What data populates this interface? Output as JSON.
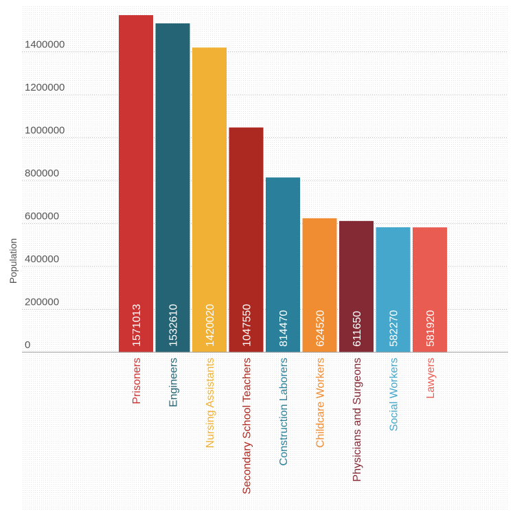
{
  "chart_data": {
    "type": "bar",
    "title": "",
    "xlabel": "",
    "ylabel": "Population",
    "ylim": [
      0,
      1600000
    ],
    "yticks": [
      0,
      200000,
      400000,
      600000,
      800000,
      1000000,
      1200000,
      1400000
    ],
    "ytick_labels": [
      "0",
      "200000",
      "400000",
      "600000",
      "800000",
      "1000000",
      "1200000",
      "1400000"
    ],
    "categories": [
      "Prisoners",
      "Engineers",
      "Nursing Assistants",
      "Secondary School Teachers",
      "Construction Laborers",
      "Childcare Workers",
      "Physicians and Surgeons",
      "Social Workers",
      "Lawyers"
    ],
    "values": [
      1571013,
      1532610,
      1420020,
      1047550,
      814470,
      624520,
      611650,
      582270,
      581920
    ],
    "data_labels": [
      "1571013",
      "1532610",
      "1420020",
      "1047550",
      "814470",
      "624520",
      "611650",
      "582270",
      "581920"
    ],
    "colors": [
      "#cc3434",
      "#246474",
      "#f0b135",
      "#ac2921",
      "#2a7f9b",
      "#f08c31",
      "#832a35",
      "#44a7cb",
      "#e95c52"
    ],
    "grid": true,
    "legend": "none"
  }
}
